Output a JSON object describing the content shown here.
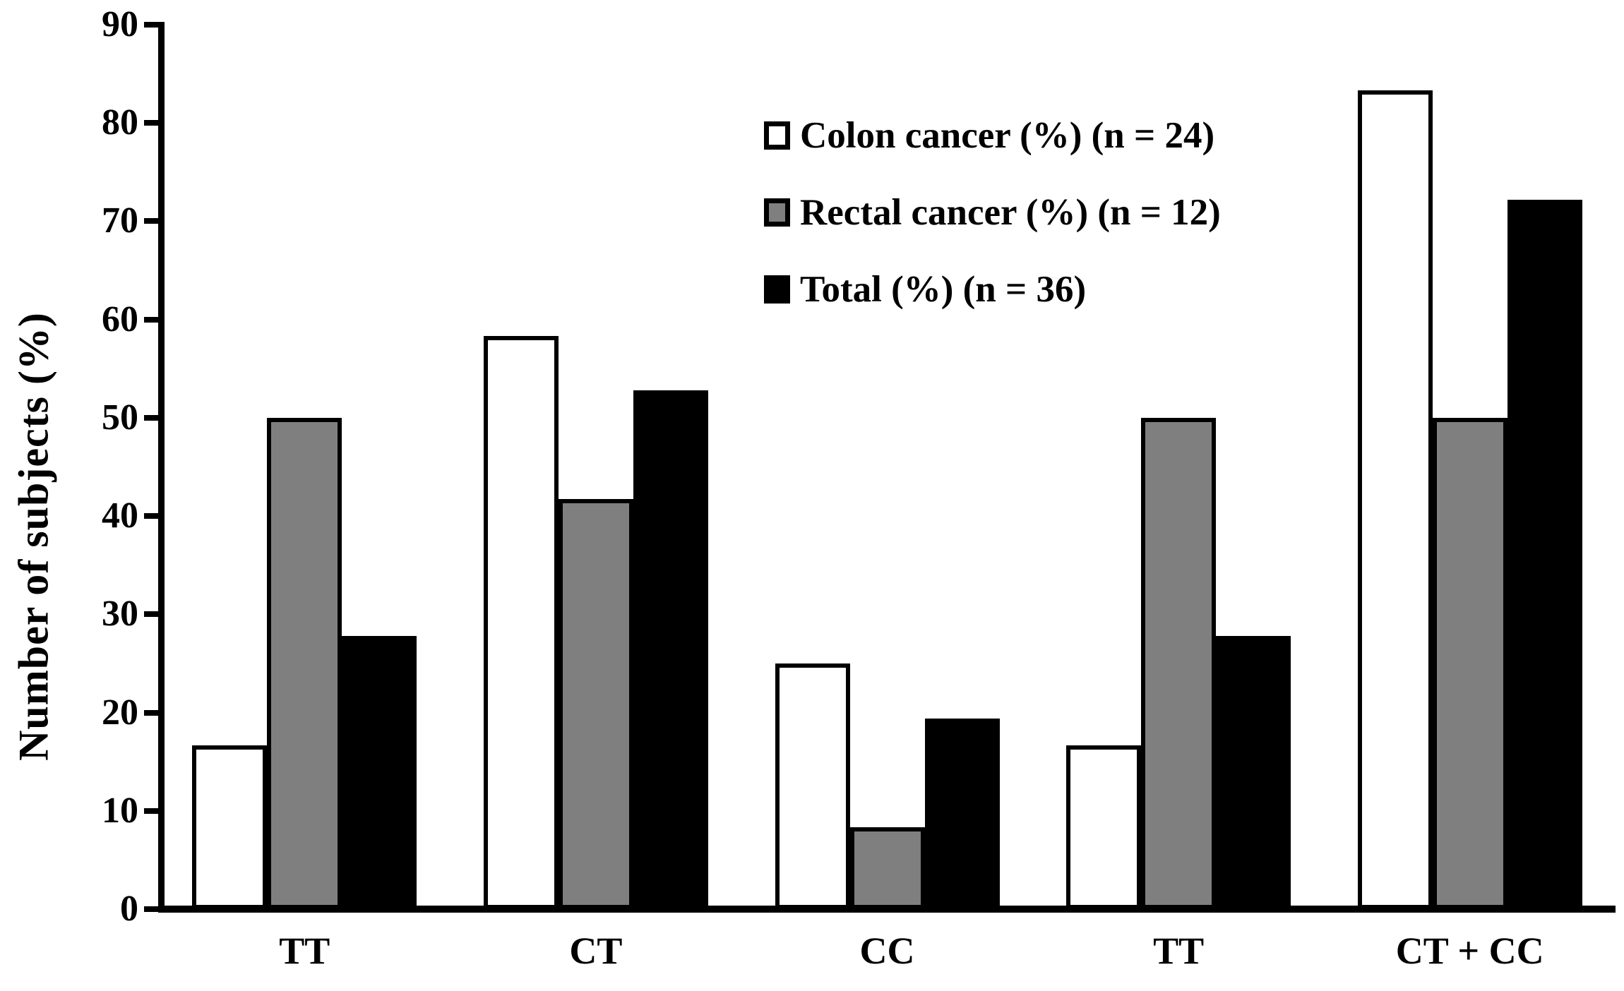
{
  "chart_data": {
    "type": "bar",
    "title": "",
    "xlabel": "",
    "ylabel": "Number of subjects (%)",
    "categories": [
      "TT",
      "CT",
      "CC",
      "TT",
      "CT + CC"
    ],
    "series": [
      {
        "name": "Colon cancer (%) (n = 24)",
        "color": "#FFFFFF",
        "values": [
          16.7,
          58.3,
          25.0,
          16.7,
          83.3
        ]
      },
      {
        "name": "Rectal cancer (%) (n = 12)",
        "color": "#7F7F7F",
        "values": [
          50.0,
          41.7,
          8.3,
          50.0,
          50.0
        ]
      },
      {
        "name": "Total (%) (n = 36)",
        "color": "#000000",
        "values": [
          27.8,
          52.8,
          19.4,
          27.8,
          72.2
        ]
      }
    ],
    "ylim": [
      0,
      90
    ],
    "ytick_step": 10,
    "yticks": [
      "0",
      "10",
      "20",
      "30",
      "40",
      "50",
      "60",
      "70",
      "80",
      "90"
    ],
    "grid": false,
    "legend_position": "upper-right-inside",
    "bar_outline_color": "#000000",
    "background_color": "#FFFFFF"
  }
}
